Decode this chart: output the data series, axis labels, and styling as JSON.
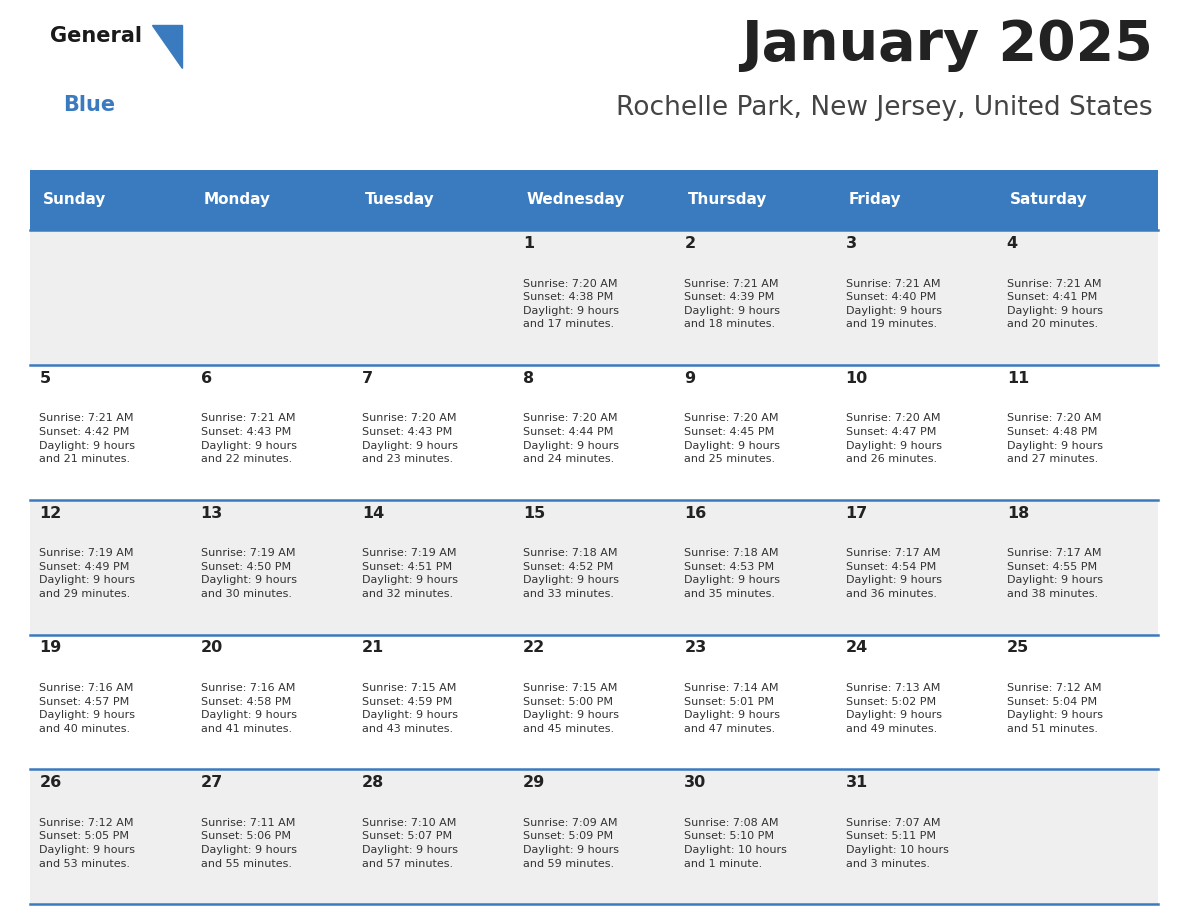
{
  "title": "January 2025",
  "subtitle": "Rochelle Park, New Jersey, United States",
  "days_of_week": [
    "Sunday",
    "Monday",
    "Tuesday",
    "Wednesday",
    "Thursday",
    "Friday",
    "Saturday"
  ],
  "header_bg": "#3a7bbf",
  "header_text": "#ffffff",
  "row_bg_odd": "#efefef",
  "row_bg_even": "#ffffff",
  "cell_text_color": "#333333",
  "day_num_color": "#222222",
  "divider_color": "#3a7bbf",
  "title_color": "#222222",
  "subtitle_color": "#444444",
  "logo_general_color": "#1a1a1a",
  "logo_blue_color": "#3a7bbf",
  "calendar_data": [
    [
      null,
      null,
      null,
      {
        "day": 1,
        "sunrise": "7:20 AM",
        "sunset": "4:38 PM",
        "daylight": "9 hours",
        "daylight2": "and 17 minutes."
      },
      {
        "day": 2,
        "sunrise": "7:21 AM",
        "sunset": "4:39 PM",
        "daylight": "9 hours",
        "daylight2": "and 18 minutes."
      },
      {
        "day": 3,
        "sunrise": "7:21 AM",
        "sunset": "4:40 PM",
        "daylight": "9 hours",
        "daylight2": "and 19 minutes."
      },
      {
        "day": 4,
        "sunrise": "7:21 AM",
        "sunset": "4:41 PM",
        "daylight": "9 hours",
        "daylight2": "and 20 minutes."
      }
    ],
    [
      {
        "day": 5,
        "sunrise": "7:21 AM",
        "sunset": "4:42 PM",
        "daylight": "9 hours",
        "daylight2": "and 21 minutes."
      },
      {
        "day": 6,
        "sunrise": "7:21 AM",
        "sunset": "4:43 PM",
        "daylight": "9 hours",
        "daylight2": "and 22 minutes."
      },
      {
        "day": 7,
        "sunrise": "7:20 AM",
        "sunset": "4:43 PM",
        "daylight": "9 hours",
        "daylight2": "and 23 minutes."
      },
      {
        "day": 8,
        "sunrise": "7:20 AM",
        "sunset": "4:44 PM",
        "daylight": "9 hours",
        "daylight2": "and 24 minutes."
      },
      {
        "day": 9,
        "sunrise": "7:20 AM",
        "sunset": "4:45 PM",
        "daylight": "9 hours",
        "daylight2": "and 25 minutes."
      },
      {
        "day": 10,
        "sunrise": "7:20 AM",
        "sunset": "4:47 PM",
        "daylight": "9 hours",
        "daylight2": "and 26 minutes."
      },
      {
        "day": 11,
        "sunrise": "7:20 AM",
        "sunset": "4:48 PM",
        "daylight": "9 hours",
        "daylight2": "and 27 minutes."
      }
    ],
    [
      {
        "day": 12,
        "sunrise": "7:19 AM",
        "sunset": "4:49 PM",
        "daylight": "9 hours",
        "daylight2": "and 29 minutes."
      },
      {
        "day": 13,
        "sunrise": "7:19 AM",
        "sunset": "4:50 PM",
        "daylight": "9 hours",
        "daylight2": "and 30 minutes."
      },
      {
        "day": 14,
        "sunrise": "7:19 AM",
        "sunset": "4:51 PM",
        "daylight": "9 hours",
        "daylight2": "and 32 minutes."
      },
      {
        "day": 15,
        "sunrise": "7:18 AM",
        "sunset": "4:52 PM",
        "daylight": "9 hours",
        "daylight2": "and 33 minutes."
      },
      {
        "day": 16,
        "sunrise": "7:18 AM",
        "sunset": "4:53 PM",
        "daylight": "9 hours",
        "daylight2": "and 35 minutes."
      },
      {
        "day": 17,
        "sunrise": "7:17 AM",
        "sunset": "4:54 PM",
        "daylight": "9 hours",
        "daylight2": "and 36 minutes."
      },
      {
        "day": 18,
        "sunrise": "7:17 AM",
        "sunset": "4:55 PM",
        "daylight": "9 hours",
        "daylight2": "and 38 minutes."
      }
    ],
    [
      {
        "day": 19,
        "sunrise": "7:16 AM",
        "sunset": "4:57 PM",
        "daylight": "9 hours",
        "daylight2": "and 40 minutes."
      },
      {
        "day": 20,
        "sunrise": "7:16 AM",
        "sunset": "4:58 PM",
        "daylight": "9 hours",
        "daylight2": "and 41 minutes."
      },
      {
        "day": 21,
        "sunrise": "7:15 AM",
        "sunset": "4:59 PM",
        "daylight": "9 hours",
        "daylight2": "and 43 minutes."
      },
      {
        "day": 22,
        "sunrise": "7:15 AM",
        "sunset": "5:00 PM",
        "daylight": "9 hours",
        "daylight2": "and 45 minutes."
      },
      {
        "day": 23,
        "sunrise": "7:14 AM",
        "sunset": "5:01 PM",
        "daylight": "9 hours",
        "daylight2": "and 47 minutes."
      },
      {
        "day": 24,
        "sunrise": "7:13 AM",
        "sunset": "5:02 PM",
        "daylight": "9 hours",
        "daylight2": "and 49 minutes."
      },
      {
        "day": 25,
        "sunrise": "7:12 AM",
        "sunset": "5:04 PM",
        "daylight": "9 hours",
        "daylight2": "and 51 minutes."
      }
    ],
    [
      {
        "day": 26,
        "sunrise": "7:12 AM",
        "sunset": "5:05 PM",
        "daylight": "9 hours",
        "daylight2": "and 53 minutes."
      },
      {
        "day": 27,
        "sunrise": "7:11 AM",
        "sunset": "5:06 PM",
        "daylight": "9 hours",
        "daylight2": "and 55 minutes."
      },
      {
        "day": 28,
        "sunrise": "7:10 AM",
        "sunset": "5:07 PM",
        "daylight": "9 hours",
        "daylight2": "and 57 minutes."
      },
      {
        "day": 29,
        "sunrise": "7:09 AM",
        "sunset": "5:09 PM",
        "daylight": "9 hours",
        "daylight2": "and 59 minutes."
      },
      {
        "day": 30,
        "sunrise": "7:08 AM",
        "sunset": "5:10 PM",
        "daylight": "10 hours",
        "daylight2": "and 1 minute."
      },
      {
        "day": 31,
        "sunrise": "7:07 AM",
        "sunset": "5:11 PM",
        "daylight": "10 hours",
        "daylight2": "and 3 minutes."
      },
      null
    ]
  ]
}
